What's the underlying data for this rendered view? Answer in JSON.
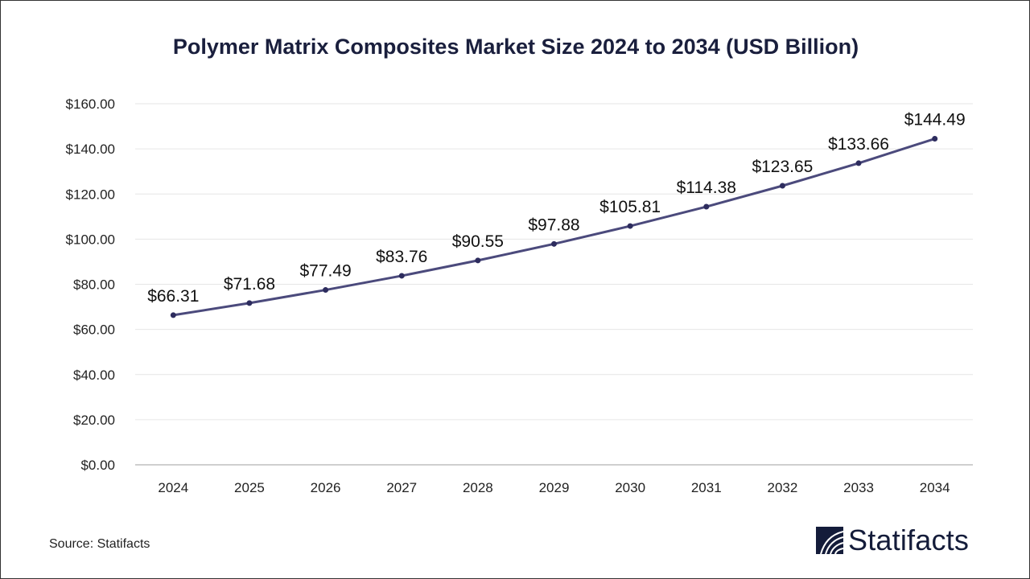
{
  "chart_data": {
    "type": "line",
    "title": "Polymer Matrix Composites Market Size 2024 to 2034 (USD Billion)",
    "categories": [
      "2024",
      "2025",
      "2026",
      "2027",
      "2028",
      "2029",
      "2030",
      "2031",
      "2032",
      "2033",
      "2034"
    ],
    "values": [
      66.31,
      71.68,
      77.49,
      83.76,
      90.55,
      97.88,
      105.81,
      114.38,
      123.65,
      133.66,
      144.49
    ],
    "data_labels": [
      "$66.31",
      "$71.68",
      "$77.49",
      "$83.76",
      "$90.55",
      "$97.88",
      "$105.81",
      "$114.38",
      "$123.65",
      "$133.66",
      "$144.49"
    ],
    "y_ticks": [
      "$0.00",
      "$20.00",
      "$40.00",
      "$60.00",
      "$80.00",
      "$100.00",
      "$120.00",
      "$140.00",
      "$160.00"
    ],
    "ylim": [
      0,
      160
    ],
    "xlabel": "",
    "ylabel": "",
    "grid": true,
    "legend": "none",
    "colors": {
      "line": "#4b4a7c",
      "marker": "#2d2c5e",
      "grid": "#e6e6e6",
      "axis": "#bfbfbf",
      "title": "#1a1f3d"
    }
  },
  "source": "Source: Statifacts",
  "logo": {
    "text": "Statifacts",
    "icon": "statifacts-wave-logo-icon"
  }
}
